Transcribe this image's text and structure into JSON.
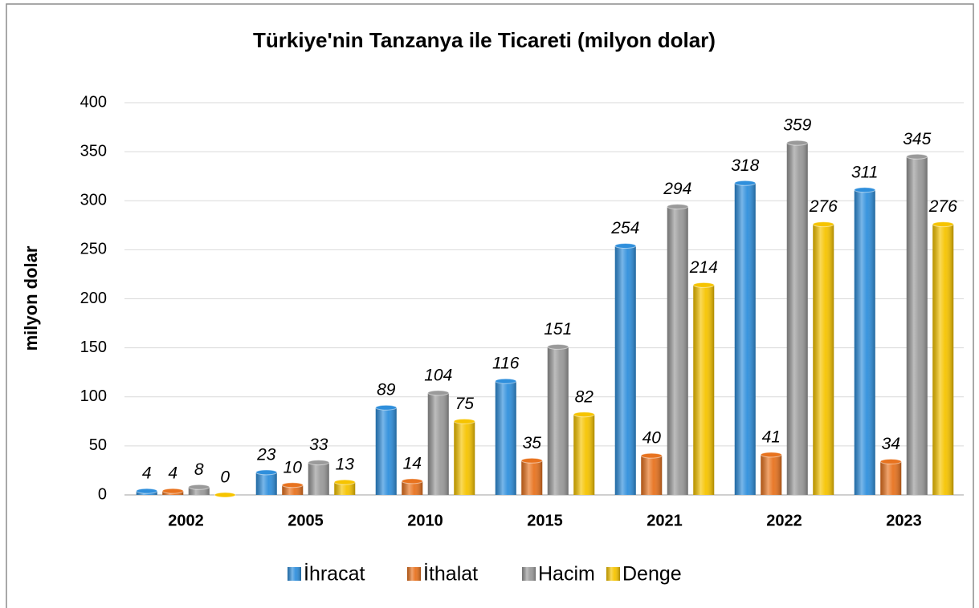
{
  "chart_data": {
    "type": "bar",
    "title": "Türkiye'nin Tanzanya ile Ticareti (milyon dolar)",
    "y_label": "milyon dolar",
    "categories": [
      "2002",
      "2005",
      "2010",
      "2015",
      "2021",
      "2022",
      "2023"
    ],
    "series": [
      {
        "name": "İhracat",
        "color": "#2f8fdc",
        "values": [
          4,
          23,
          89,
          116,
          254,
          318,
          311
        ]
      },
      {
        "name": "İthalat",
        "color": "#e8731f",
        "values": [
          4,
          10,
          14,
          35,
          40,
          41,
          34
        ]
      },
      {
        "name": "Hacim",
        "color": "#9a9a9a",
        "values": [
          8,
          33,
          104,
          151,
          294,
          359,
          345
        ]
      },
      {
        "name": "Denge",
        "color": "#f6c400",
        "values": [
          0,
          13,
          75,
          82,
          214,
          276,
          276
        ]
      }
    ],
    "ylim": [
      0,
      400
    ],
    "yticks": [
      0,
      50,
      100,
      150,
      200,
      250,
      300,
      350,
      400
    ],
    "grid": true,
    "legend": "bottom"
  }
}
